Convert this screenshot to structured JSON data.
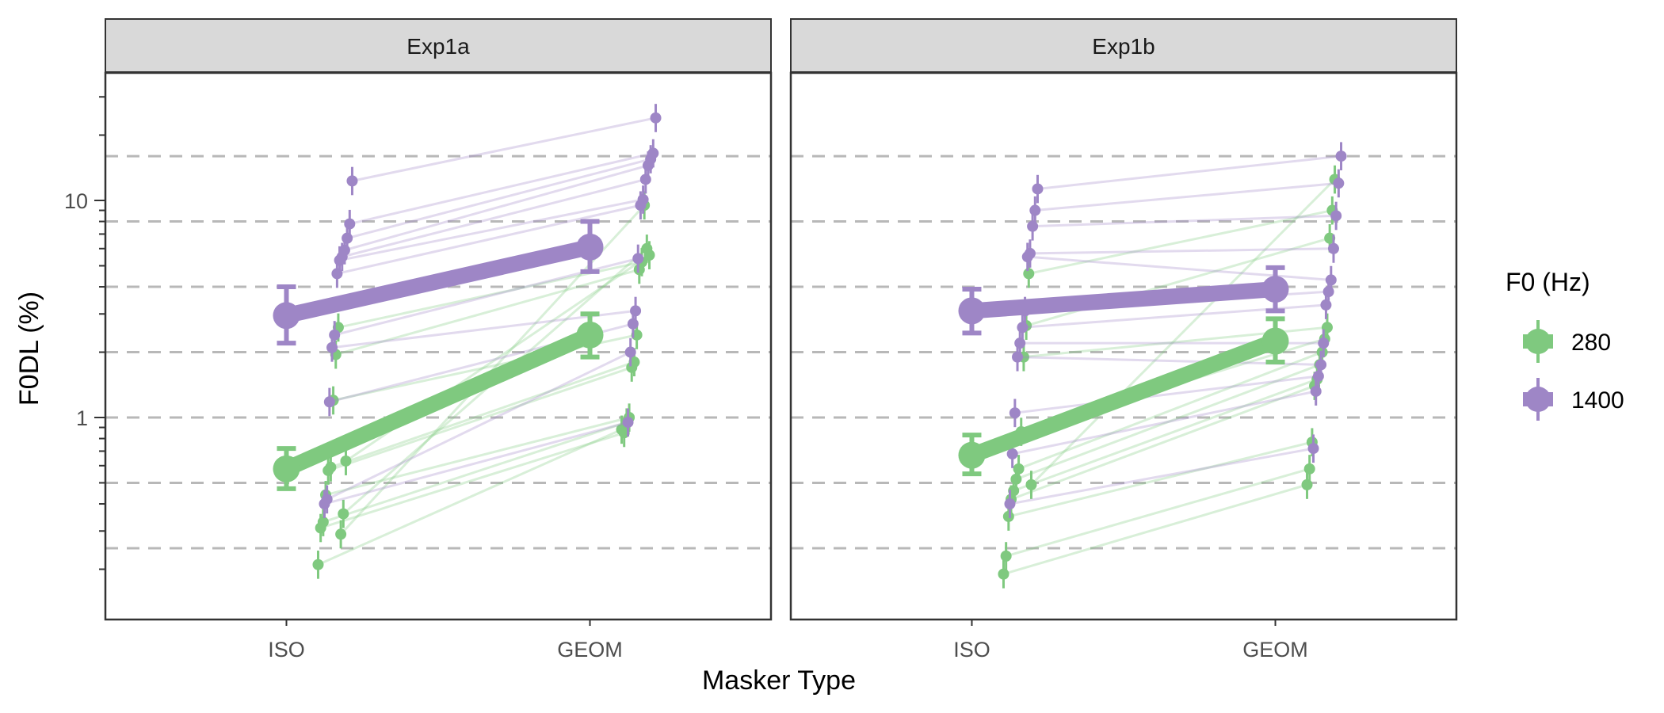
{
  "chart_data": {
    "type": "scatter",
    "scale_y": "log10",
    "ylabel": "F0DL (%)",
    "xlabel": "Masker Type",
    "categories": [
      "ISO",
      "GEOM"
    ],
    "ylim": [
      0.13,
      45
    ],
    "y_major_ticks": [
      {
        "value": 1,
        "label": "1"
      },
      {
        "value": 10,
        "label": "10"
      }
    ],
    "y_minor_ticks": [
      0.2,
      0.3,
      0.4,
      0.5,
      0.6,
      0.7,
      0.8,
      0.9,
      2,
      3,
      4,
      5,
      6,
      7,
      8,
      9,
      20,
      30
    ],
    "reference_lines": [
      0.25,
      0.5,
      1,
      2,
      4,
      8,
      16
    ],
    "legend": {
      "title": "F0 (Hz)",
      "position": "right",
      "entries": [
        {
          "label": "280",
          "color": "#7FC97F"
        },
        {
          "label": "1400",
          "color": "#9E86C6"
        }
      ]
    },
    "colors": {
      "280": "#7FC97F",
      "1400": "#9E86C6"
    },
    "panels": [
      {
        "strip": "Exp1a",
        "means": [
          {
            "f0": "280",
            "values": [
              0.58,
              2.4
            ],
            "errors": [
              [
                0.47,
                0.72
              ],
              [
                1.9,
                3.0
              ]
            ]
          },
          {
            "f0": "1400",
            "values": [
              2.95,
              6.1
            ],
            "errors": [
              [
                2.2,
                4.0
              ],
              [
                4.7,
                8.0
              ]
            ]
          }
        ],
        "subjects": {
          "280": [
            {
              "iso": 0.21,
              "geom": 0.88
            },
            {
              "iso": 0.31,
              "geom": 0.85
            },
            {
              "iso": 0.33,
              "geom": 0.95
            },
            {
              "iso": 0.44,
              "geom": 1.0
            },
            {
              "iso": 0.57,
              "geom": 1.7
            },
            {
              "iso": 0.59,
              "geom": 1.8
            },
            {
              "iso": 1.2,
              "geom": 2.4
            },
            {
              "iso": 1.95,
              "geom": 4.8
            },
            {
              "iso": 2.6,
              "geom": 5.2
            },
            {
              "iso": 0.29,
              "geom": 9.5
            },
            {
              "iso": 0.36,
              "geom": 6.0
            },
            {
              "iso": 0.63,
              "geom": 5.6
            }
          ],
          "1400": [
            {
              "iso": 0.4,
              "geom": 0.95
            },
            {
              "iso": 0.42,
              "geom": 2.0
            },
            {
              "iso": 1.18,
              "geom": 2.7
            },
            {
              "iso": 2.1,
              "geom": 3.1
            },
            {
              "iso": 2.4,
              "geom": 5.4
            },
            {
              "iso": 4.6,
              "geom": 9.5
            },
            {
              "iso": 5.3,
              "geom": 10.1
            },
            {
              "iso": 5.5,
              "geom": 12.5
            },
            {
              "iso": 5.9,
              "geom": 14.5
            },
            {
              "iso": 6.7,
              "geom": 15.5
            },
            {
              "iso": 7.8,
              "geom": 16.5
            },
            {
              "iso": 12.3,
              "geom": 24
            }
          ]
        }
      },
      {
        "strip": "Exp1b",
        "means": [
          {
            "f0": "280",
            "values": [
              0.67,
              2.25
            ],
            "errors": [
              [
                0.55,
                0.83
              ],
              [
                1.8,
                2.85
              ]
            ]
          },
          {
            "f0": "1400",
            "values": [
              3.1,
              3.9
            ],
            "errors": [
              [
                2.45,
                3.9
              ],
              [
                3.1,
                4.9
              ]
            ]
          }
        ],
        "subjects": {
          "280": [
            {
              "iso": 0.19,
              "geom": 0.49
            },
            {
              "iso": 0.23,
              "geom": 0.58
            },
            {
              "iso": 0.35,
              "geom": 0.77
            },
            {
              "iso": 0.42,
              "geom": 1.4
            },
            {
              "iso": 0.46,
              "geom": 1.5
            },
            {
              "iso": 0.52,
              "geom": 1.75
            },
            {
              "iso": 0.58,
              "geom": 2.0
            },
            {
              "iso": 0.86,
              "geom": 2.3
            },
            {
              "iso": 1.9,
              "geom": 2.6
            },
            {
              "iso": 2.65,
              "geom": 6.7
            },
            {
              "iso": 4.6,
              "geom": 9.0
            },
            {
              "iso": 0.49,
              "geom": 12.5
            }
          ],
          "1400": [
            {
              "iso": 0.4,
              "geom": 0.72
            },
            {
              "iso": 0.68,
              "geom": 1.32
            },
            {
              "iso": 1.05,
              "geom": 1.55
            },
            {
              "iso": 1.9,
              "geom": 1.75
            },
            {
              "iso": 2.2,
              "geom": 2.2
            },
            {
              "iso": 2.6,
              "geom": 3.3
            },
            {
              "iso": 3.1,
              "geom": 3.8
            },
            {
              "iso": 5.5,
              "geom": 4.3
            },
            {
              "iso": 5.7,
              "geom": 6.0
            },
            {
              "iso": 7.6,
              "geom": 8.5
            },
            {
              "iso": 9.0,
              "geom": 12.0
            },
            {
              "iso": 11.3,
              "geom": 16.0
            }
          ]
        }
      }
    ]
  }
}
